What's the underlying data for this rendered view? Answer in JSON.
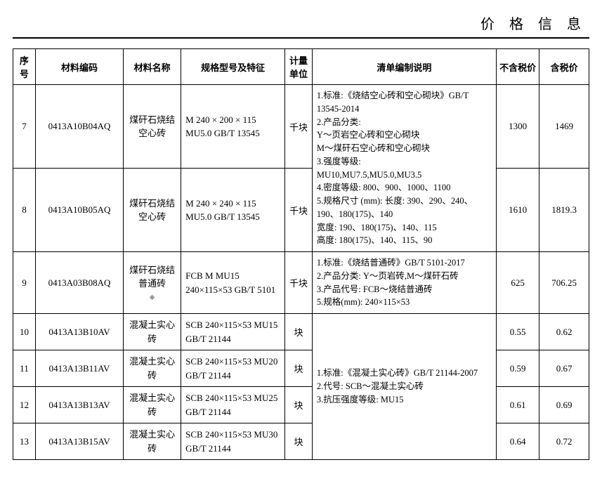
{
  "page_title": "价 格 信 息",
  "headers": {
    "seq": "序号",
    "code": "材料编码",
    "name": "材料名称",
    "spec": "规格型号及特征",
    "unit": "计量单位",
    "desc": "清单编制说明",
    "price_excl": "不含税价",
    "price_incl": "含税价"
  },
  "rows": [
    {
      "seq": "7",
      "code": "0413A10B04AQ",
      "name": "煤矸石烧结空心砖",
      "spec": "M 240 × 200 × 115 MU5.0 GB/T 13545",
      "unit": "千块",
      "price_excl": "1300",
      "price_incl": "1469"
    },
    {
      "seq": "8",
      "code": "0413A10B05AQ",
      "name": "煤矸石烧结空心砖",
      "spec": "M 240 × 240 × 115 MU5.0 GB/T 13545",
      "unit": "千块",
      "price_excl": "1610",
      "price_incl": "1819.3"
    },
    {
      "seq": "9",
      "code": "0413A03B08AQ",
      "name": "煤矸石烧结普通砖",
      "spec": "FCB M MU15 240×115×53 GB/T 5101",
      "unit": "千块",
      "price_excl": "625",
      "price_incl": "706.25"
    },
    {
      "seq": "10",
      "code": "0413A13B10AV",
      "name": "混凝土实心砖",
      "spec": "SCB 240×115×53  MU15  GB/T 21144",
      "unit": "块",
      "price_excl": "0.55",
      "price_incl": "0.62"
    },
    {
      "seq": "11",
      "code": "0413A13B11AV",
      "name": "混凝土实心砖",
      "spec": "SCB 240×115×53  MU20  GB/T 21144",
      "unit": "块",
      "price_excl": "0.59",
      "price_incl": "0.67"
    },
    {
      "seq": "12",
      "code": "0413A13B13AV",
      "name": "混凝土实心砖",
      "spec": "SCB 240×115×53  MU25  GB/T 21144",
      "unit": "块",
      "price_excl": "0.61",
      "price_incl": "0.69"
    },
    {
      "seq": "13",
      "code": "0413A13B15AV",
      "name": "混凝土实心砖",
      "spec": "SCB 240×115×53  MU30  GB/T 21144",
      "unit": "块",
      "price_excl": "0.64",
      "price_incl": "0.72"
    }
  ],
  "desc_groups": {
    "g1": "1.标准:《烧结空心砖和空心砌块》GB/T 13545-2014\n2.产品分类:\nY～页岩空心砖和空心砌块\nM～煤矸石空心砖和空心砌块\n3.强度等级:\nMU10,MU7.5,MU5.0,MU3.5\n4.密度等级: 800、900、1000、1100\n5.规格尺寸 (mm): 长度: 390、290、240、190、180(175)、140\n宽度: 190、180(175)、140、115\n高度: 180(175)、140、115、90",
    "g2": "1.标准:《烧结普通砖》GB/T 5101-2017\n2.产品分类: Y～页岩砖,M～煤矸石砖\n3.产品代号: FCB～烧结普通砖\n5.规格(mm): 240×115×53",
    "g3": "1.标准:《混凝土实心砖》GB/T 21144-2007\n2.代号: SCB～混凝土实心砖\n3.抗压强度等级: MU15"
  },
  "diamond": "◆"
}
